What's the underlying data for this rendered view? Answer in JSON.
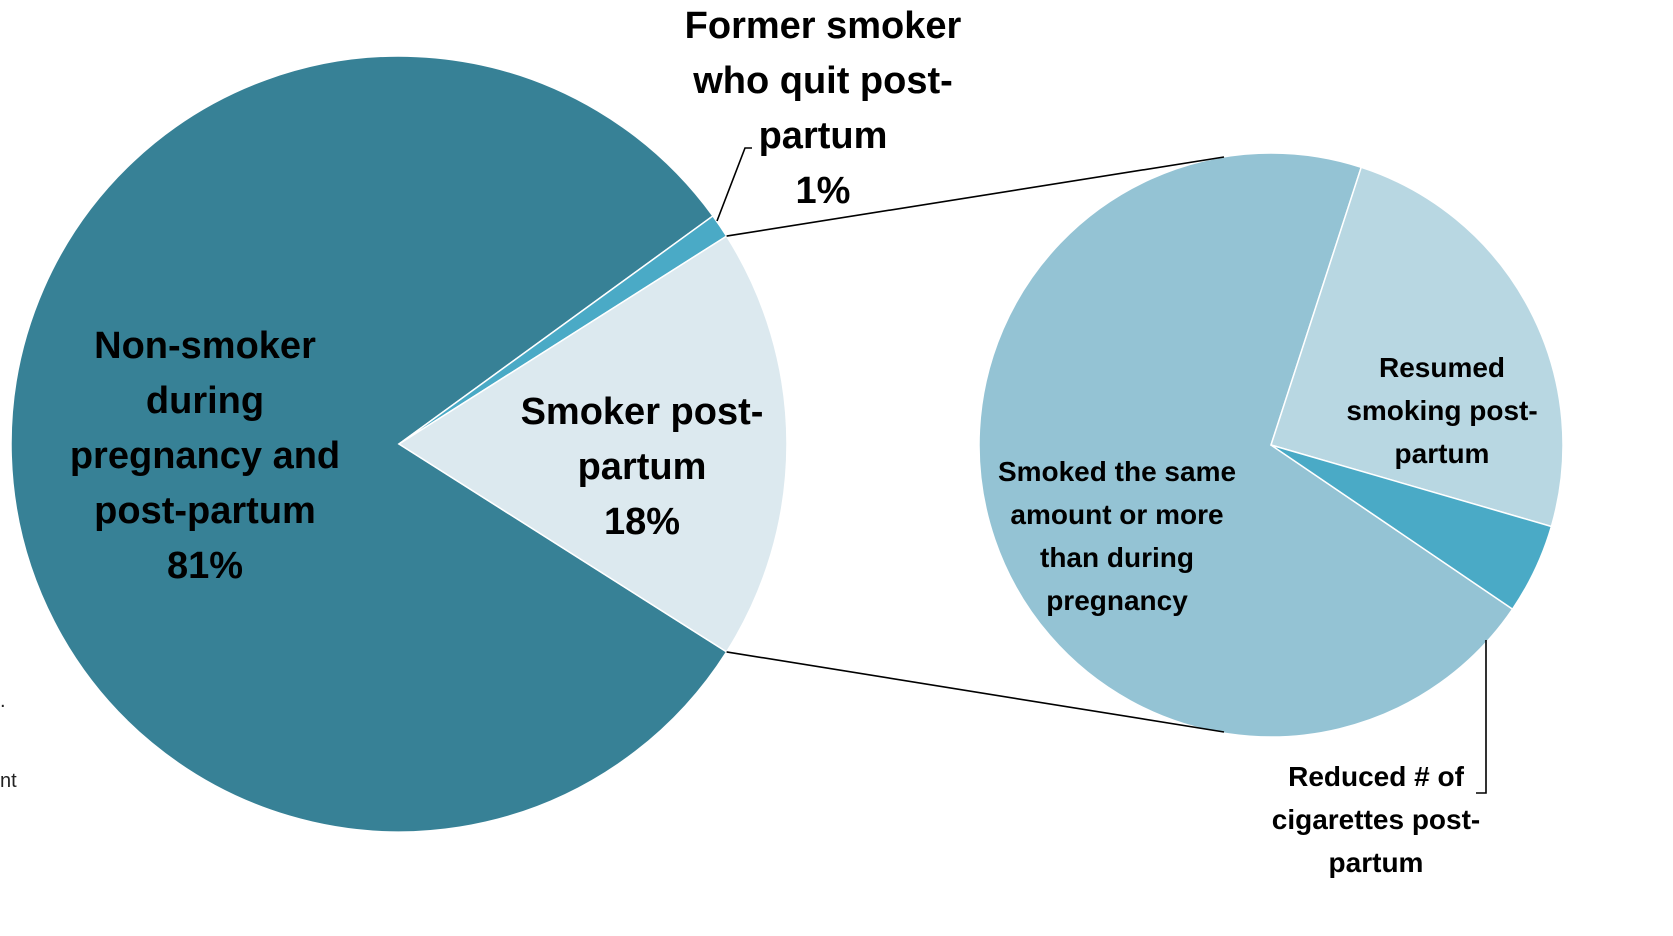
{
  "chart_data": {
    "type": "pie",
    "main_pie": {
      "slices": [
        {
          "label_lines": [
            "Non-smoker",
            "during",
            "pregnancy and",
            "post-partum",
            "81%"
          ],
          "value": 81,
          "color": "#378196"
        },
        {
          "label_lines": [
            "Former smoker",
            "who quit post-",
            "partum",
            "1%"
          ],
          "value": 1,
          "color": "#4aaac6"
        },
        {
          "label_lines": [
            "Smoker post-",
            "partum",
            "18%"
          ],
          "value": 18,
          "color": "#dce9ef"
        }
      ],
      "exploded_slice": 2
    },
    "breakdown_pie": {
      "of_slice": "Smoker post-partum",
      "slices": [
        {
          "label_lines": [
            "Smoked the same",
            "amount or more",
            "than during",
            "pregnancy"
          ],
          "value": 70.5,
          "color": "#94c3d4"
        },
        {
          "label_lines": [
            "Resumed",
            "smoking post-",
            "partum"
          ],
          "value": 24.5,
          "color": "#b8d7e2"
        },
        {
          "label_lines": [
            "Reduced # of",
            "cigarettes post-",
            "partum"
          ],
          "value": 5,
          "color": "#4aaac6"
        }
      ]
    },
    "colors": {
      "connector": "#000000",
      "text": "#000000"
    }
  },
  "clipped_text": [
    ".",
    "nt"
  ]
}
